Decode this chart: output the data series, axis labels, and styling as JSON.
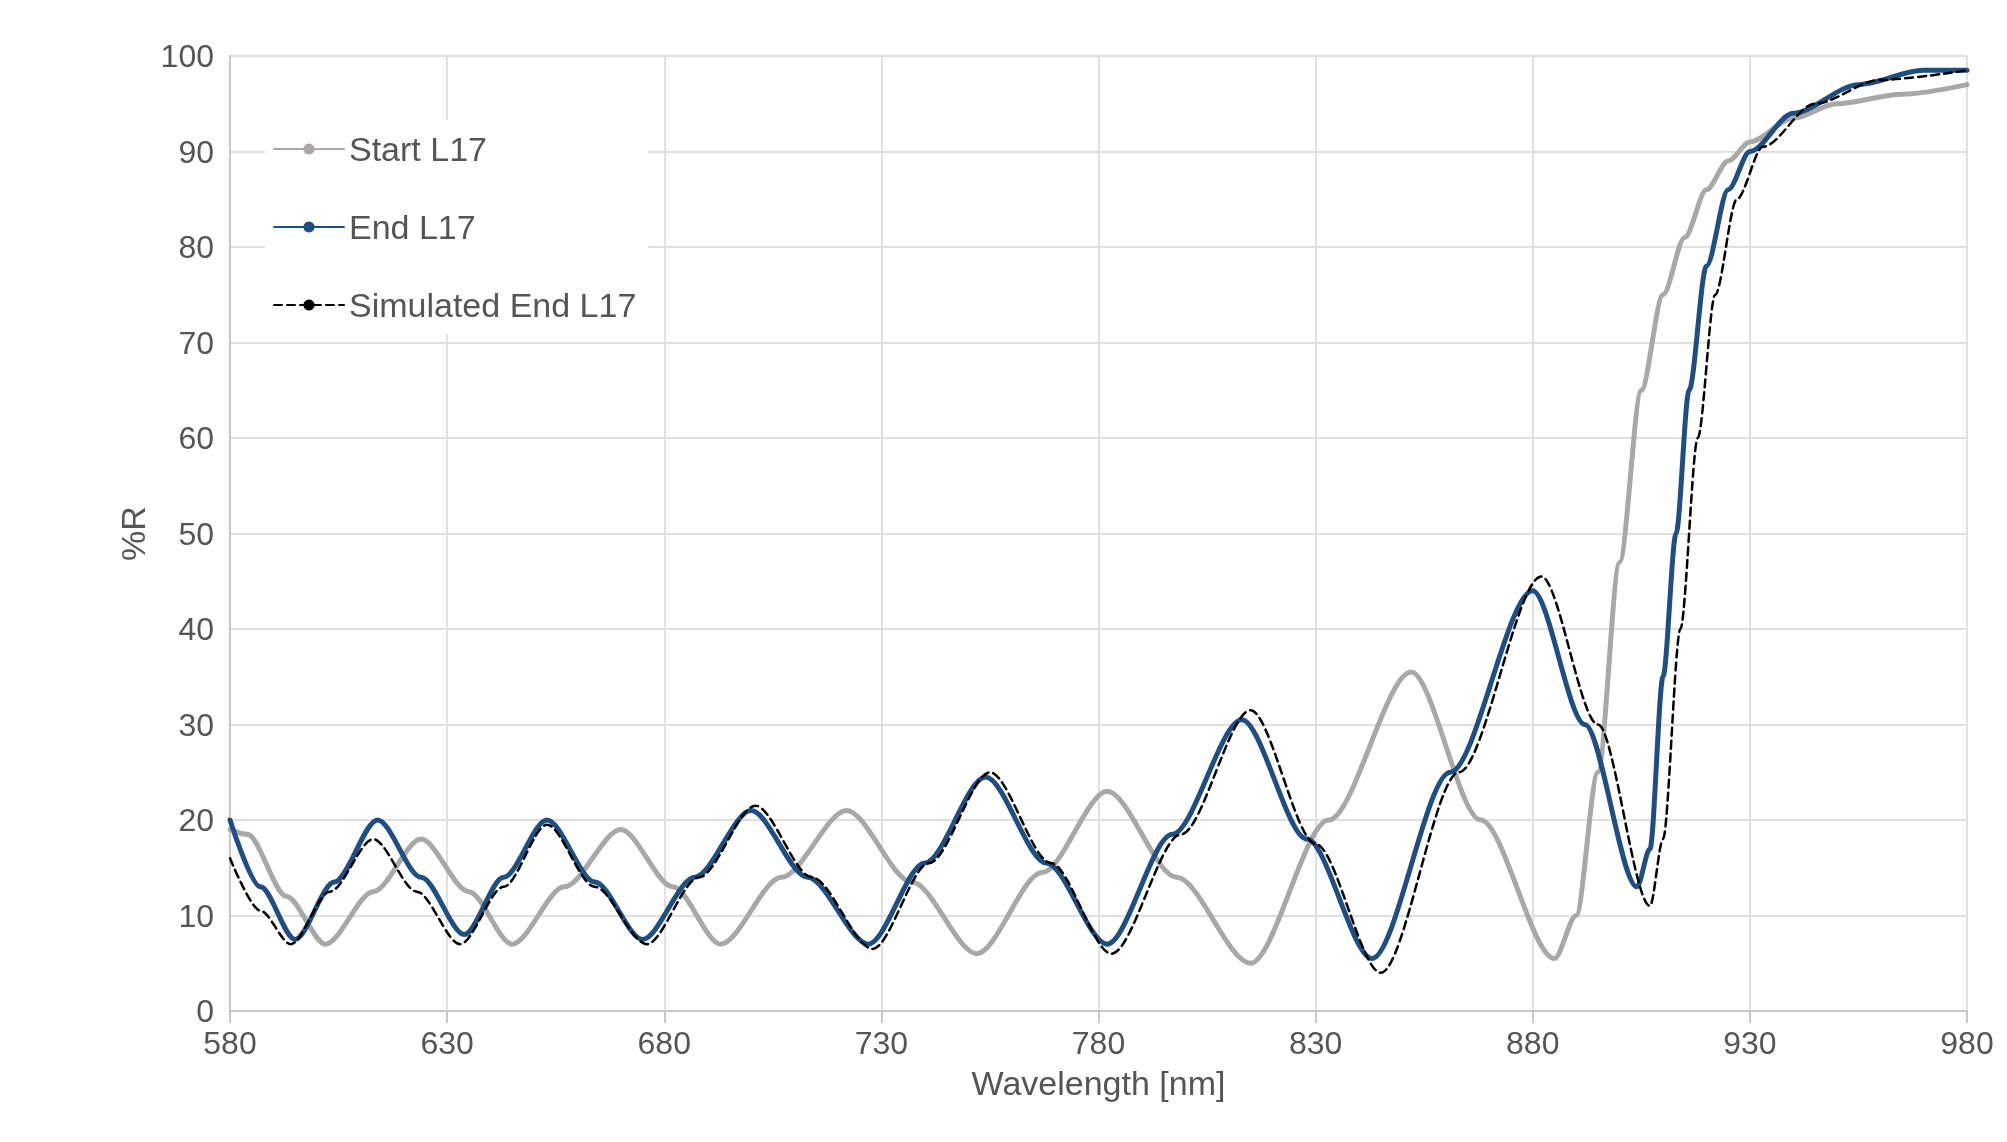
{
  "chart_data": {
    "type": "line",
    "xlabel": "Wavelength [nm]",
    "ylabel": "%R",
    "xlim": [
      580,
      980
    ],
    "xticks": [
      580,
      630,
      680,
      730,
      780,
      830,
      880,
      930,
      980
    ],
    "ylim": [
      0,
      100
    ],
    "yticks": [
      0,
      10,
      20,
      30,
      40,
      50,
      60,
      70,
      80,
      90,
      100
    ],
    "grid": true,
    "legend": "top left",
    "marker": "none",
    "series": [
      {
        "name": "Start L17",
        "color": "#a9a7a8",
        "line_style": "solid",
        "x": [
          580,
          584,
          593,
          602,
          613,
          624,
          635,
          645,
          657,
          670,
          682,
          693,
          707,
          722,
          737,
          752,
          767,
          782,
          798,
          815,
          833,
          852,
          868,
          885,
          890,
          895,
          900,
          905,
          910,
          915,
          920,
          925,
          930,
          940,
          950,
          965,
          980
        ],
        "values": [
          19,
          18.5,
          12,
          7,
          12.5,
          18,
          12.5,
          7,
          13,
          19,
          13,
          7,
          14,
          21,
          13.5,
          6,
          14.5,
          23,
          14,
          5,
          20,
          35.5,
          20,
          5.5,
          10,
          25,
          47,
          65,
          75,
          81,
          86,
          89,
          91,
          93.5,
          95,
          96,
          97
        ]
      },
      {
        "name": "End L17",
        "color": "#1f4e82",
        "line_style": "solid",
        "x": [
          580,
          587,
          595,
          604,
          614,
          624,
          634,
          643,
          653,
          664,
          675,
          687,
          700,
          713,
          727,
          740,
          754,
          768,
          782,
          797,
          813,
          828,
          843,
          861,
          880,
          892,
          904,
          907,
          910,
          913,
          916,
          920,
          925,
          930,
          940,
          955,
          970,
          980
        ],
        "values": [
          20,
          13,
          7.5,
          13.5,
          20,
          14,
          8,
          14,
          20,
          13.5,
          7.5,
          14,
          21,
          14,
          7,
          15.5,
          24.5,
          15.5,
          7,
          18.5,
          30.5,
          18,
          5.5,
          25,
          44,
          30,
          13,
          17,
          35,
          50,
          65,
          78,
          86,
          90,
          94,
          97,
          98.5,
          98.5
        ]
      },
      {
        "name": "Simulated End L17",
        "color": "#000000",
        "line_style": "dashed",
        "x": [
          580,
          587,
          594,
          603,
          613,
          623,
          633,
          643,
          653,
          664,
          676,
          688,
          701,
          714,
          728,
          741,
          755,
          769,
          783,
          799,
          815,
          830,
          845,
          863,
          882,
          895,
          907,
          910,
          914,
          918,
          922,
          927,
          933,
          945,
          960,
          980
        ],
        "values": [
          16,
          10.5,
          7,
          12.5,
          18,
          12.5,
          7,
          13,
          19.5,
          13,
          7,
          14,
          21.5,
          14,
          6.5,
          15.5,
          25,
          15.5,
          6,
          18.5,
          31.5,
          17.5,
          4,
          25,
          45.5,
          30,
          11,
          18,
          40,
          60,
          75,
          85,
          90.5,
          95,
          97.5,
          98.5
        ]
      }
    ]
  }
}
